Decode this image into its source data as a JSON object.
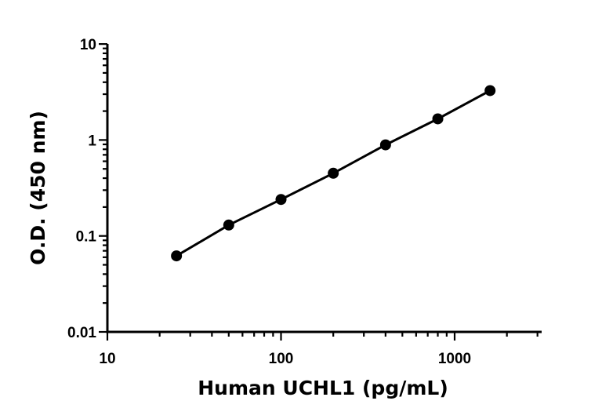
{
  "chart_data": {
    "type": "scatter",
    "title": "",
    "xlabel": "Human UCHL1 (pg/mL)",
    "ylabel": "O.D. (450 nm)",
    "x_scale": "log",
    "y_scale": "log",
    "xlim": [
      10,
      3000
    ],
    "ylim": [
      0.01,
      10
    ],
    "x_ticks": [
      {
        "value": 10,
        "label": "10"
      },
      {
        "value": 100,
        "label": "100"
      },
      {
        "value": 1000,
        "label": "1000"
      }
    ],
    "y_ticks": [
      {
        "value": 0.01,
        "label": "0.01"
      },
      {
        "value": 0.1,
        "label": "0.1"
      },
      {
        "value": 1,
        "label": "1"
      },
      {
        "value": 10,
        "label": "10"
      }
    ],
    "grid": false,
    "legend": "none",
    "series": [
      {
        "x": [
          25,
          50,
          100,
          200,
          400,
          800,
          1600
        ],
        "y": [
          0.062,
          0.13,
          0.24,
          0.45,
          0.89,
          1.66,
          3.27
        ],
        "fit_line": true,
        "color": "#000000"
      }
    ]
  }
}
